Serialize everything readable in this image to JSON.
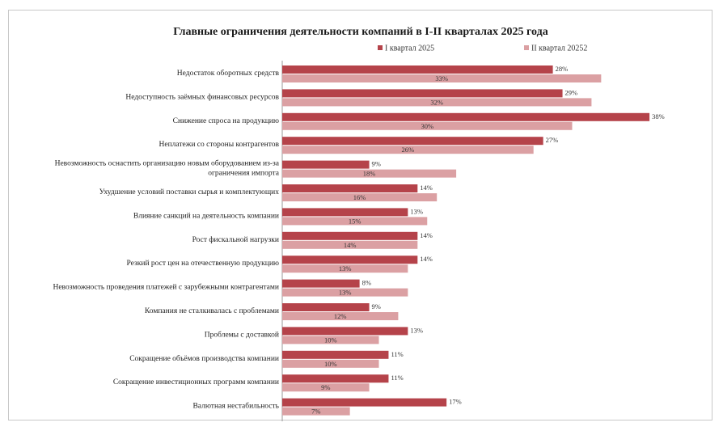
{
  "chart_data": {
    "type": "bar",
    "orientation": "horizontal",
    "title": "Главные ограничения деятельности компаний в I-II кварталах 2025 года",
    "categories": [
      [
        "Недостаток оборотных средств"
      ],
      [
        "Недоступность заёмных финансовых ресурсов"
      ],
      [
        "Снижение спроса на продукцию"
      ],
      [
        "Неплатежи со стороны контрагентов"
      ],
      [
        "Невозможность оснастить организацию новым оборудованием из-за",
        "ограничения импорта"
      ],
      [
        "Ухудшение условий поставки сырья и комплектующих"
      ],
      [
        "Влияние санкций на деятельность компании"
      ],
      [
        "Рост фискальной нагрузки"
      ],
      [
        "Резкий рост цен на отечественную продукцию"
      ],
      [
        "Невозможность проведения платежей с зарубежными контрагентами"
      ],
      [
        "Компания не сталкивалась с проблемами"
      ],
      [
        "Проблемы с доставкой"
      ],
      [
        "Сокращение объёмов производства компании"
      ],
      [
        "Сокращение инвестиционных программ компании"
      ],
      [
        "Валютная нестабильность"
      ]
    ],
    "series": [
      {
        "name": "I квартал 2025",
        "color": "#b5434a",
        "values": [
          28,
          29,
          38,
          27,
          9,
          14,
          13,
          14,
          14,
          8,
          9,
          13,
          11,
          11,
          17
        ]
      },
      {
        "name": "II квартал 20252",
        "color": "#dba0a3",
        "values": [
          33,
          32,
          30,
          26,
          18,
          16,
          15,
          14,
          13,
          13,
          12,
          10,
          10,
          9,
          7
        ]
      }
    ],
    "value_suffix": "%",
    "xlim": [
      0,
      38
    ],
    "legend_position": "top-right",
    "grid": false
  }
}
